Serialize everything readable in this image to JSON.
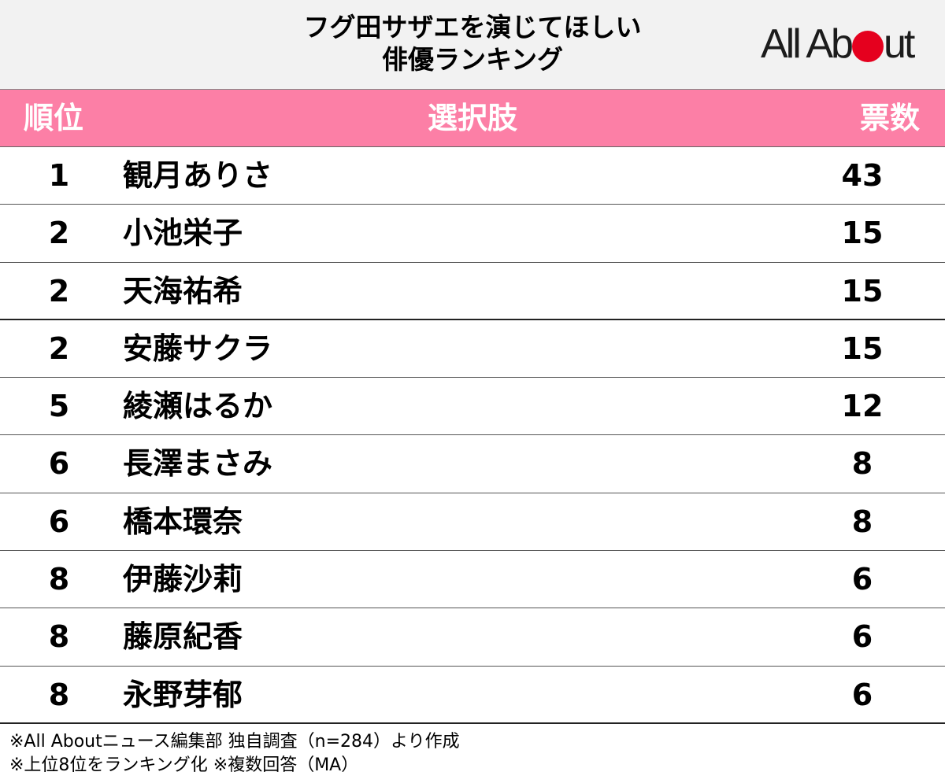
{
  "header": {
    "title_line1": "フグ田サザエを演じてほしい",
    "title_line2": "俳優ランキング",
    "logo_left": "All Ab",
    "logo_right": "ut",
    "logo_dot_color": "#e5001e"
  },
  "table_header": {
    "rank": "順位",
    "name": "選択肢",
    "votes": "票数",
    "background_color": "#fc7fa6"
  },
  "chart_data": {
    "type": "table",
    "title": "フグ田サザエを演じてほしい俳優ランキング",
    "columns": [
      "順位",
      "選択肢",
      "票数"
    ],
    "rows": [
      {
        "rank": "1",
        "name": "観月ありさ",
        "votes": "43"
      },
      {
        "rank": "2",
        "name": "小池栄子",
        "votes": "15"
      },
      {
        "rank": "2",
        "name": "天海祐希",
        "votes": "15"
      },
      {
        "rank": "2",
        "name": "安藤サクラ",
        "votes": "15"
      },
      {
        "rank": "5",
        "name": "綾瀬はるか",
        "votes": "12"
      },
      {
        "rank": "6",
        "name": "長澤まさみ",
        "votes": "8"
      },
      {
        "rank": "6",
        "name": "橋本環奈",
        "votes": "8"
      },
      {
        "rank": "8",
        "name": "伊藤沙莉",
        "votes": "6"
      },
      {
        "rank": "8",
        "name": "藤原紀香",
        "votes": "6"
      },
      {
        "rank": "8",
        "name": "永野芽郁",
        "votes": "6"
      }
    ]
  },
  "notes": {
    "line1": "※All Aboutニュース編集部 独自調査（n=284）より作成",
    "line2": "※上位8位をランキング化 ※複数回答（MA）"
  }
}
